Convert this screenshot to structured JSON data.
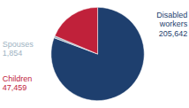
{
  "chart_data": {
    "type": "pie",
    "categories": [
      "Disabled\nworkers",
      "Spouses",
      "Children"
    ],
    "values": [
      205642,
      1854,
      47459
    ],
    "value_labels": [
      "205,642",
      "1,854",
      "47,459"
    ],
    "colors": [
      "#1e3f6e",
      "#9eb3c2",
      "#c0213a"
    ],
    "data_labels": true
  }
}
